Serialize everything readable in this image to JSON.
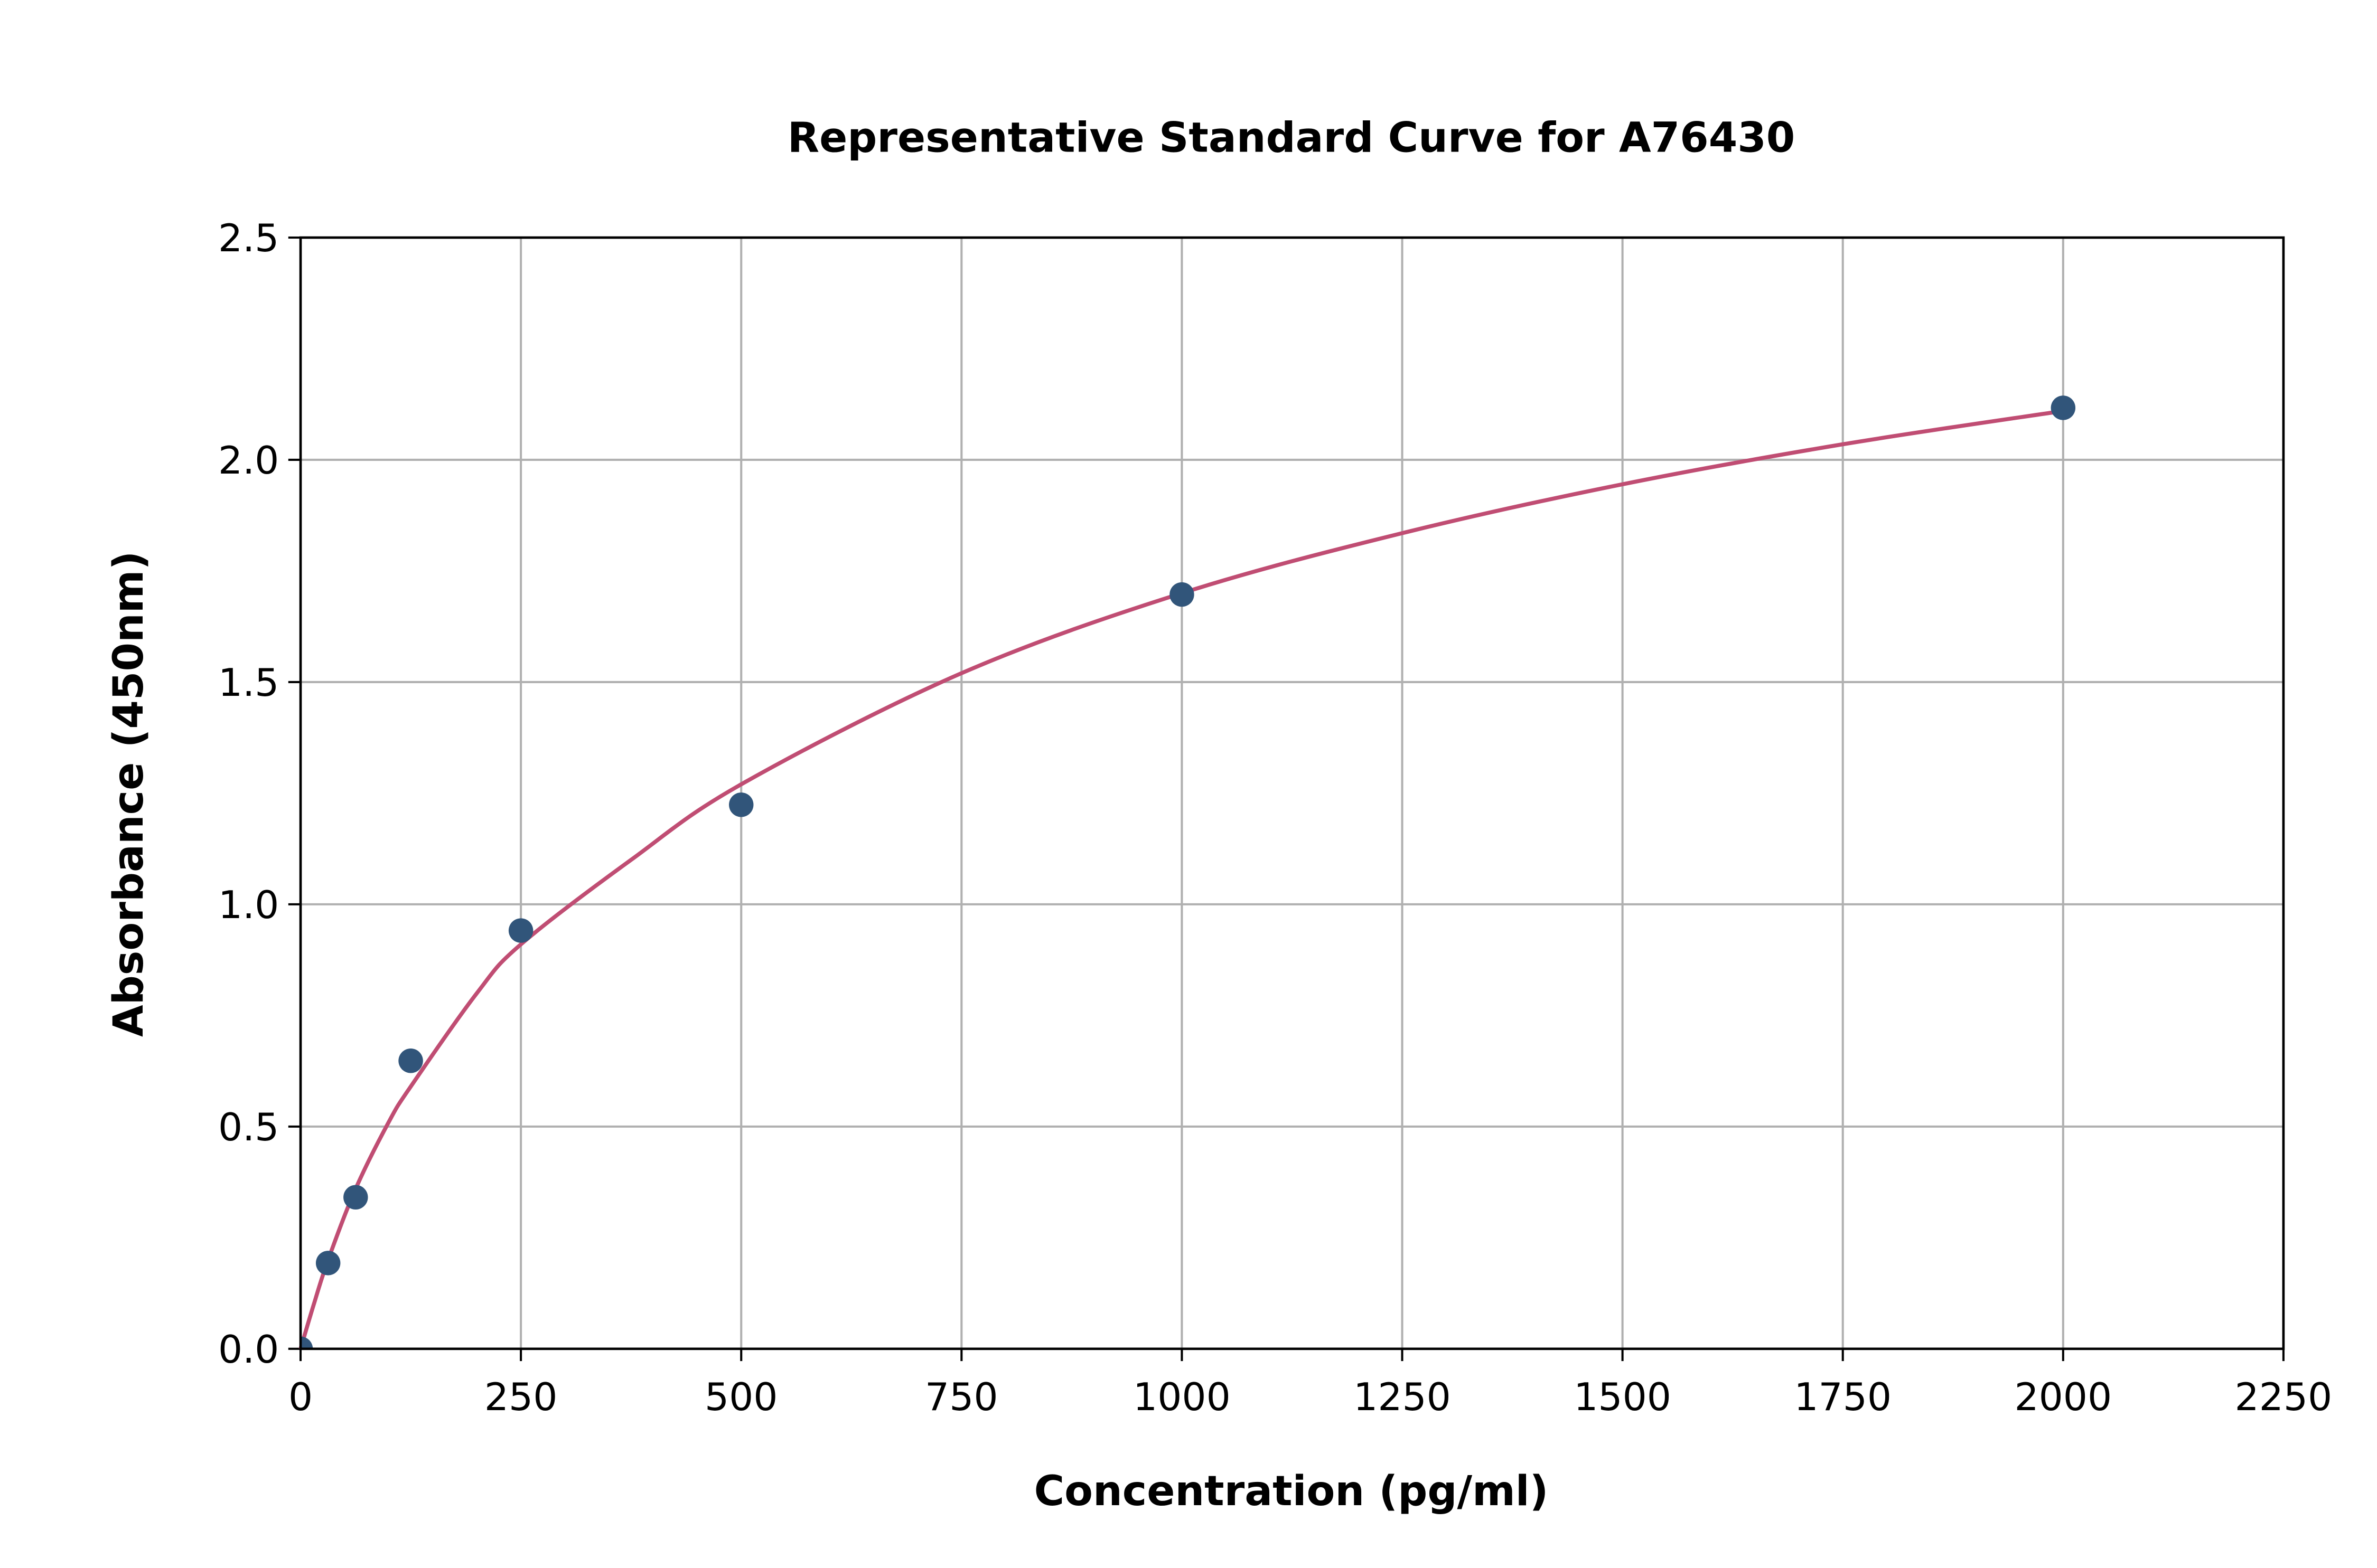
{
  "chart_data": {
    "type": "scatter",
    "title": "Representative Standard Curve for A76430",
    "xlabel": "Concentration (pg/ml)",
    "ylabel": "Absorbance (450nm)",
    "xlim": [
      0,
      2250
    ],
    "ylim": [
      0,
      2.5
    ],
    "xticks": [
      0,
      250,
      500,
      750,
      1000,
      1250,
      1500,
      1750,
      2000,
      2250
    ],
    "yticks": [
      "0.0",
      "0.5",
      "1.0",
      "1.5",
      "2.0",
      "2.5"
    ],
    "grid": true,
    "colors": {
      "points": "#31557a",
      "curve": "#c04d73",
      "grid": "#b0b0b0"
    },
    "points": {
      "x": [
        0,
        31.25,
        62.5,
        125,
        250,
        500,
        1000,
        2000
      ],
      "y": [
        0.0,
        0.193,
        0.341,
        0.648,
        0.941,
        1.224,
        1.697,
        2.117
      ]
    },
    "fit_curve": {
      "x": [
        0,
        15,
        31.25,
        62.5,
        100,
        125,
        200,
        250,
        375,
        500,
        750,
        1000,
        1250,
        1500,
        1750,
        2000
      ],
      "y": [
        0,
        0.1,
        0.2,
        0.36,
        0.51,
        0.59,
        0.8,
        0.91,
        1.1,
        1.27,
        1.52,
        1.7,
        1.835,
        1.945,
        2.035,
        2.11
      ]
    }
  }
}
